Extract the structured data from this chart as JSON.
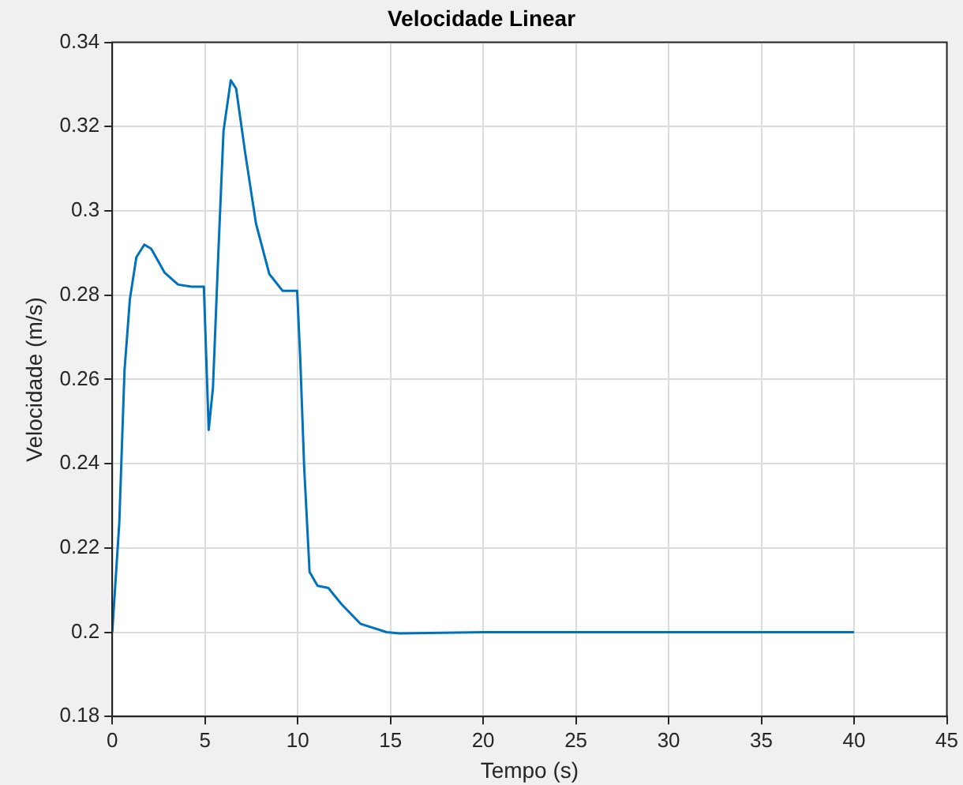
{
  "chart_data": {
    "type": "line",
    "title": "Velocidade Linear",
    "xlabel": "Tempo (s)",
    "ylabel": "Velocidade (m/s)",
    "x": [
      0,
      0.38,
      0.66,
      0.95,
      1.3,
      1.73,
      2.1,
      2.83,
      3.55,
      4.28,
      4.94,
      5.2,
      5.43,
      5.72,
      6.0,
      6.39,
      6.68,
      7.17,
      7.75,
      8.47,
      9.19,
      9.97,
      10.14,
      10.35,
      10.64,
      11.07,
      11.65,
      12.37,
      13.38,
      14.8,
      15.5,
      20,
      30,
      40
    ],
    "series": [
      {
        "color": "#0072bd",
        "values": [
          0.2,
          0.226,
          0.262,
          0.279,
          0.289,
          0.292,
          0.291,
          0.2853,
          0.2825,
          0.282,
          0.282,
          0.248,
          0.258,
          0.29,
          0.319,
          0.331,
          0.329,
          0.3137,
          0.297,
          0.285,
          0.281,
          0.281,
          0.2646,
          0.239,
          0.2143,
          0.211,
          0.2105,
          0.2066,
          0.202,
          0.2,
          0.1997,
          0.2,
          0.2,
          0.2
        ]
      }
    ],
    "xlim": [
      0,
      45
    ],
    "xticks": [
      0,
      5,
      10,
      15,
      20,
      25,
      30,
      35,
      40,
      45
    ],
    "ylim": [
      0.18,
      0.34
    ],
    "yticks": [
      0.18,
      0.2,
      0.22,
      0.24,
      0.26,
      0.28,
      0.3,
      0.32,
      0.34
    ],
    "grid": true,
    "legend": false,
    "marker": "none",
    "line_style": "solid"
  }
}
